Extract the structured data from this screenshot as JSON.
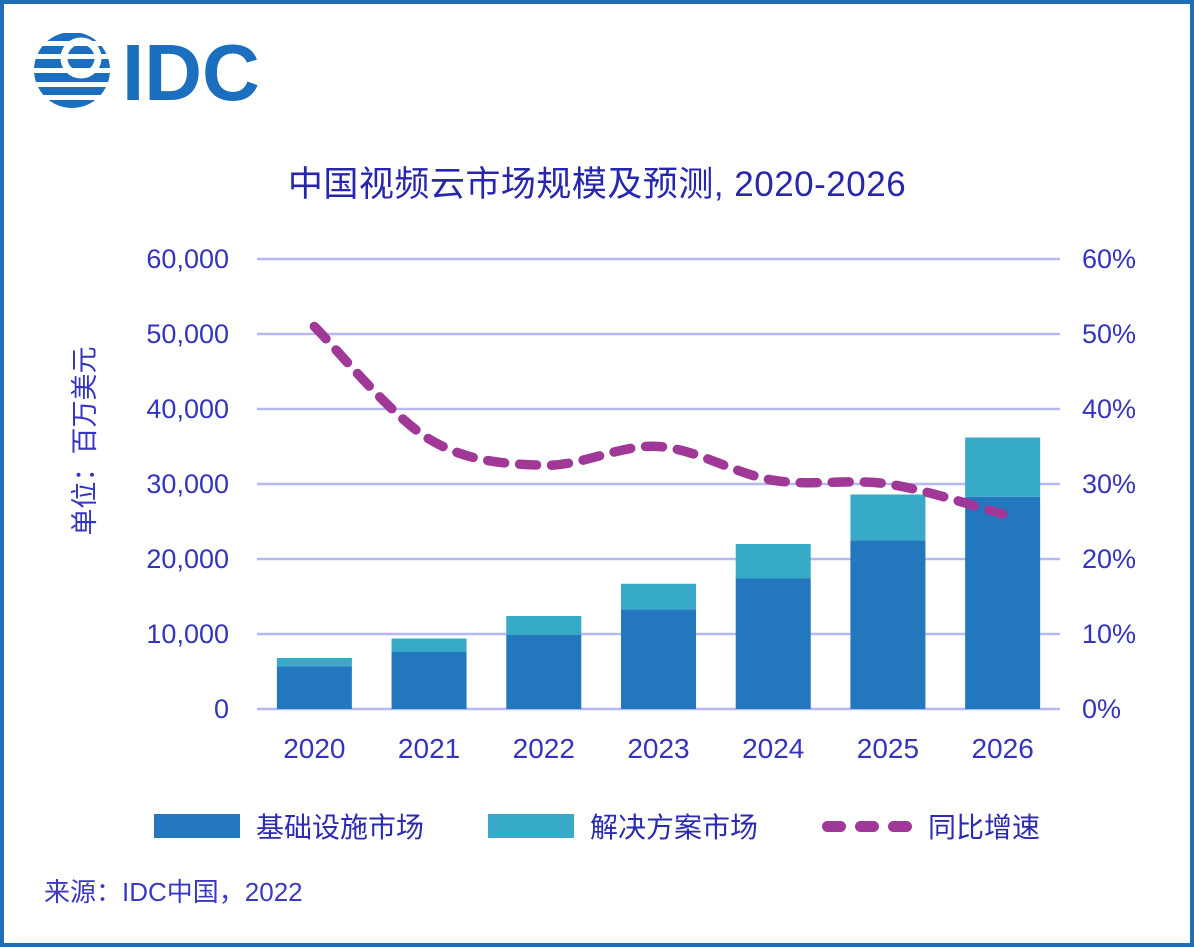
{
  "logo": {
    "name": "IDC",
    "color": "#1C6FBF"
  },
  "title": "中国视频云市场规模及预测, 2020-2026",
  "source": "来源：IDC中国，2022",
  "chart_data": {
    "type": "bar+line combo (stacked bars, right-axis dashed line)",
    "title": "中国视频云市场规模及预测, 2020-2026",
    "categories": [
      "2020",
      "2021",
      "2022",
      "2023",
      "2024",
      "2025",
      "2026"
    ],
    "series": [
      {
        "name": "基础设施市场",
        "type": "bar",
        "stacked": true,
        "color": "#2277BD",
        "axis": "left",
        "values": [
          5700,
          7600,
          9900,
          13300,
          17400,
          22500,
          28300
        ]
      },
      {
        "name": "解决方案市场",
        "type": "bar",
        "stacked": true,
        "color": "#36AAC6",
        "axis": "left",
        "values": [
          1100,
          1800,
          2500,
          3400,
          4600,
          6100,
          7900
        ]
      },
      {
        "name": "同比增速",
        "type": "line",
        "style": "dashed",
        "color": "#A03897",
        "axis": "right",
        "values_percent": [
          51,
          36,
          32.5,
          35,
          30.5,
          30,
          26
        ]
      }
    ],
    "left_axis": {
      "label": "单位：百万美元",
      "min": 0,
      "max": 60000,
      "tick_step": 10000,
      "ticks": [
        "0",
        "10,000",
        "20,000",
        "30,000",
        "40,000",
        "50,000",
        "60,000"
      ]
    },
    "right_axis": {
      "min": 0,
      "max": 0.6,
      "tick_step": 0.1,
      "ticks": [
        "0%",
        "10%",
        "20%",
        "30%",
        "40%",
        "50%",
        "60%"
      ]
    },
    "grid": "horizontal, light lavender #B7B7F3",
    "legend_position": "bottom",
    "source": "来源：IDC中国，2022"
  }
}
